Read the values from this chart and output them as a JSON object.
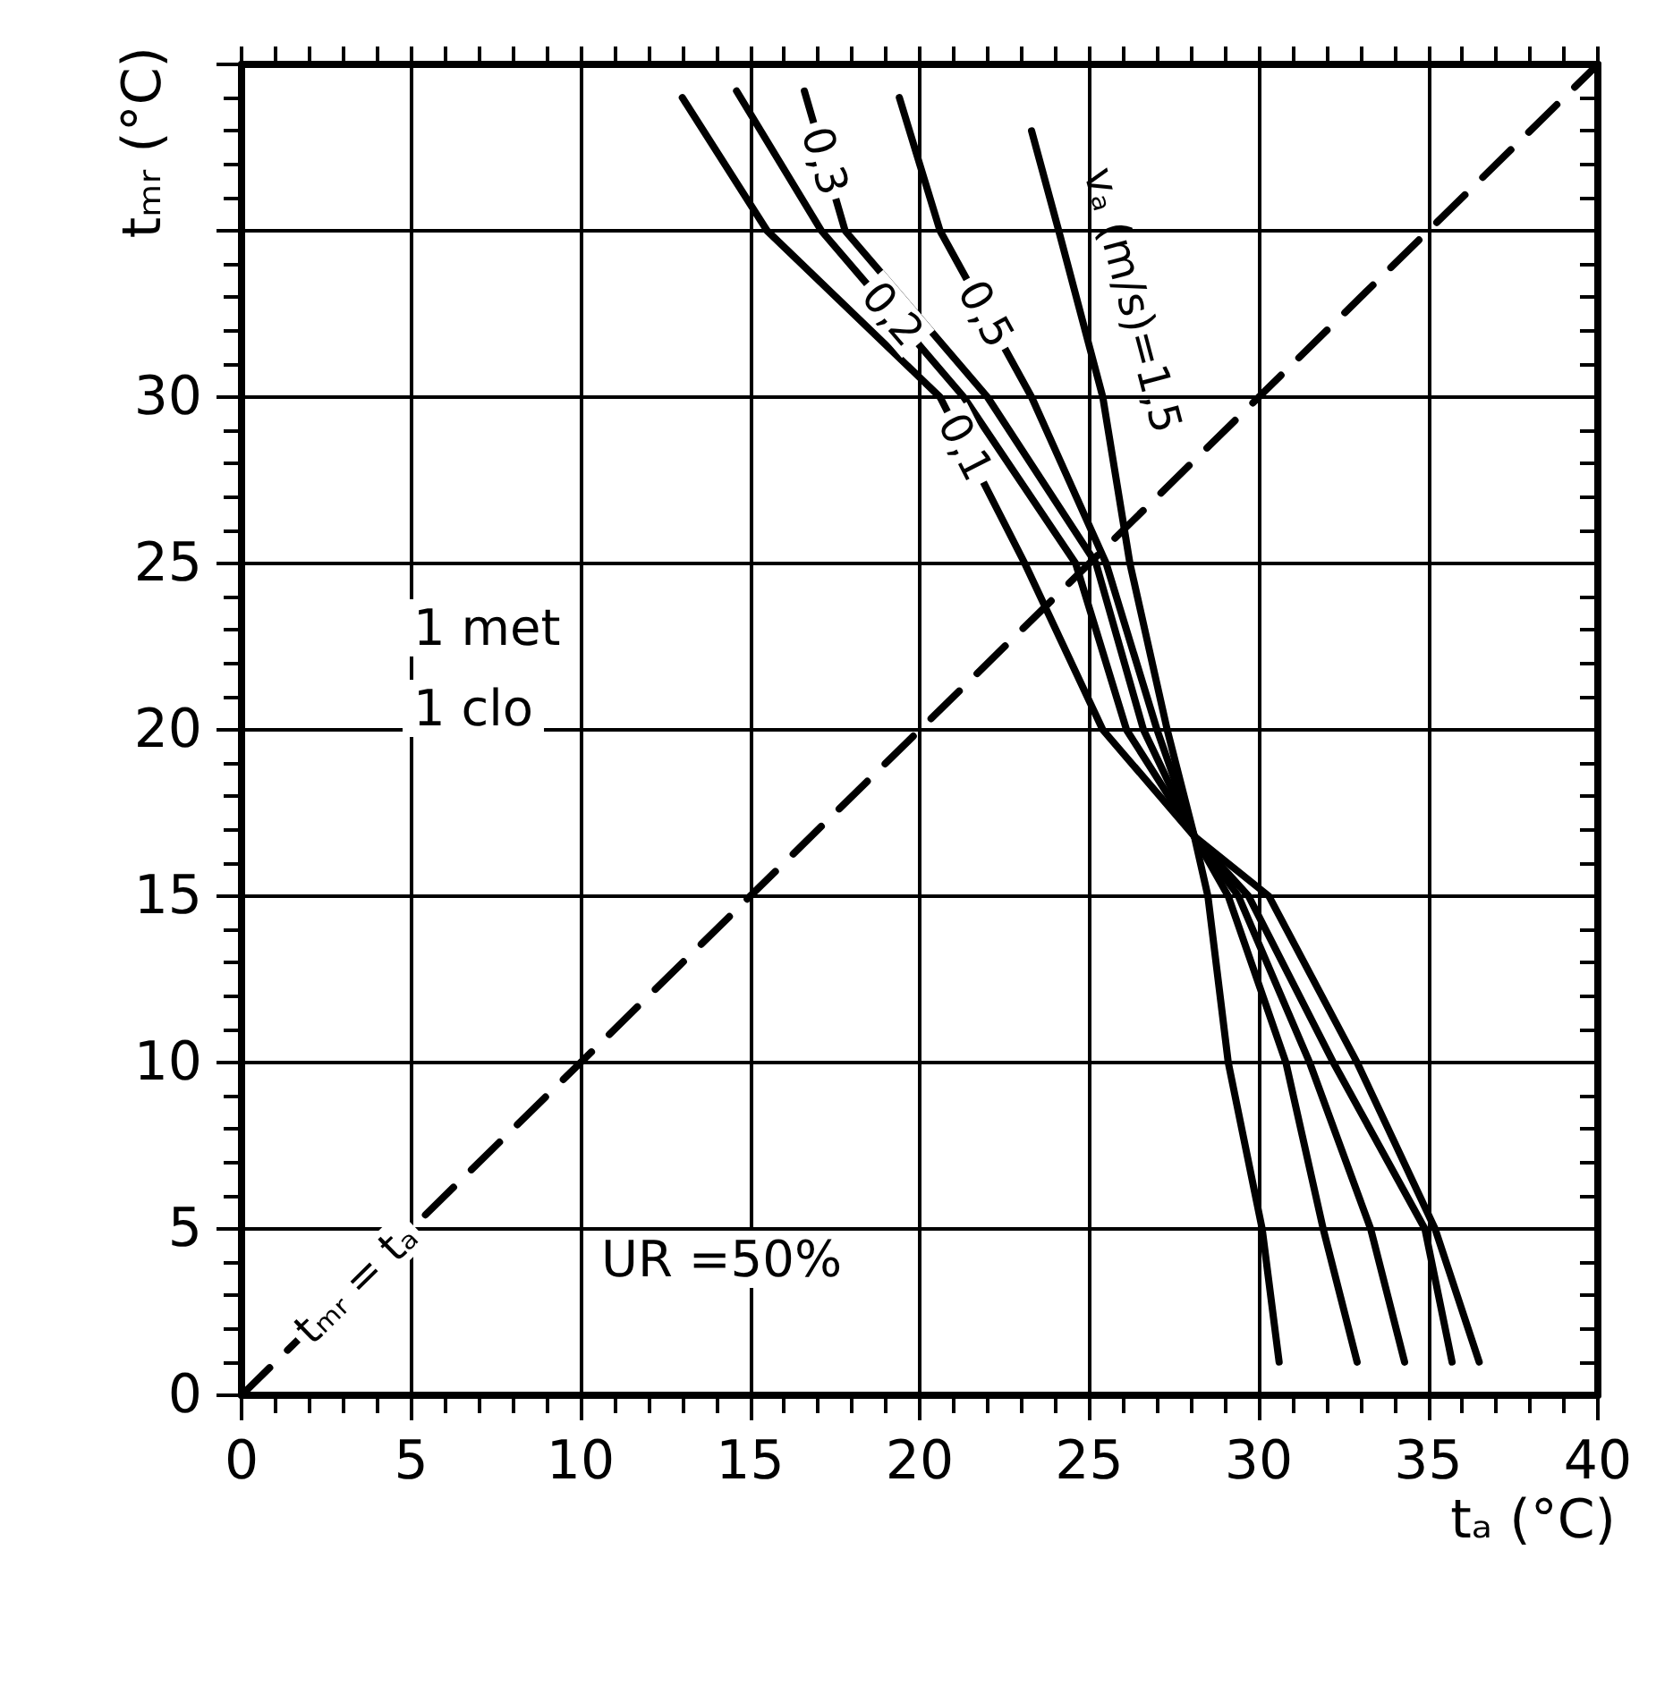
{
  "chart_data": {
    "type": "line",
    "xlabel": "tₐ (°C)",
    "ylabel": "tₘᵣ (°C)",
    "xlim": [
      0,
      40
    ],
    "xticks": [
      0,
      5,
      10,
      15,
      20,
      25,
      30,
      35,
      40
    ],
    "ylim": [
      0,
      40
    ],
    "yticks": [
      0,
      5,
      10,
      15,
      20,
      25,
      30,
      {
        "value": 35,
        "label": null
      }
    ],
    "grid": true,
    "legend": false,
    "marker": "none",
    "annotations": [
      "1 met",
      "1 clo",
      "UR =50%"
    ],
    "series": [
      {
        "name": "0,1",
        "color": "#000000",
        "x": [
          13,
          15.5,
          20.6,
          23.1,
          25.4,
          28.1,
          30.3,
          32.9,
          35.2,
          36.5
        ],
        "values": [
          39,
          35,
          30,
          25,
          20,
          16.8,
          15,
          10,
          5,
          1
        ]
      },
      {
        "name": "0,2",
        "color": "#000000",
        "x": [
          14.6,
          17.1,
          21.3,
          24.6,
          26.1,
          28.1,
          29.7,
          32.2,
          34.9,
          35.7
        ],
        "values": [
          39.2,
          35,
          30,
          25,
          20,
          16.8,
          15,
          10,
          5,
          1
        ]
      },
      {
        "name": "0,3",
        "color": "#000000",
        "x": [
          16.6,
          17.8,
          22,
          25.2,
          26.6,
          28.1,
          29.4,
          31.5,
          33.3,
          34.3
        ],
        "values": [
          39.2,
          35,
          30,
          25,
          20,
          16.8,
          15,
          10,
          5,
          1
        ]
      },
      {
        "name": "0,5",
        "color": "#000000",
        "x": [
          19.4,
          20.6,
          23.3,
          25.5,
          27,
          28.1,
          29.1,
          30.8,
          31.9,
          32.9
        ],
        "values": [
          39,
          35,
          30,
          25,
          20,
          16.8,
          15,
          10,
          5,
          1
        ]
      },
      {
        "name": "vₐ (m/s)=1,5",
        "color": "#000000",
        "x": [
          23.3,
          24.1,
          25.4,
          26.2,
          27.3,
          28.1,
          28.5,
          29.1,
          30.1,
          30.6
        ],
        "values": [
          38,
          35,
          30,
          25,
          20,
          16.8,
          15,
          10,
          5,
          1
        ]
      },
      {
        "name": "tₘᵣ = tₐ",
        "color": "#000000",
        "line_style": "dashed",
        "x": [
          0,
          7.5,
          40
        ],
        "values": [
          0,
          7.5,
          40
        ]
      }
    ]
  }
}
